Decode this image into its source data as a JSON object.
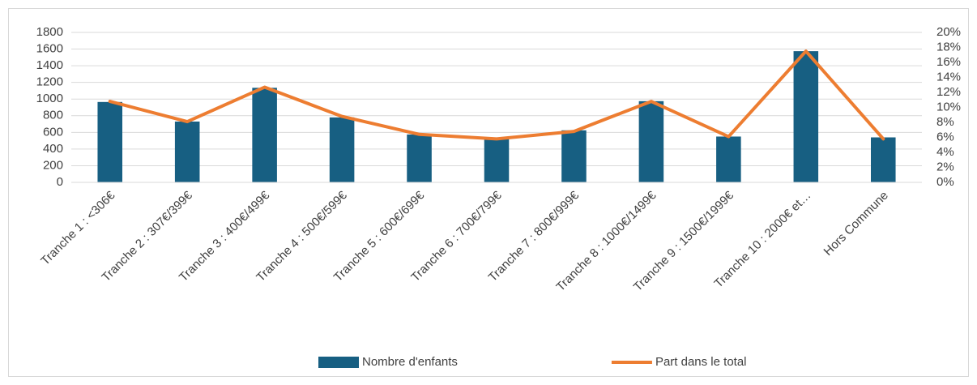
{
  "chart_data": {
    "type": "bar",
    "categories": [
      "Tranche 1 : <306€",
      "Tranche 2 : 307€/399€",
      "Tranche 3 : 400€/499€",
      "Tranche 4 : 500€/599€",
      "Tranche 5 : 600€/699€",
      "Tranche 6 : 700€/799€",
      "Tranche 7 : 800€/999€",
      "Tranche 8 : 1000€/1499€",
      "Tranche 9 : 1500€/1999€",
      "Tranche 10 : 2000€ et…",
      "Hors Commune"
    ],
    "series": [
      {
        "name": "Nombre d'enfants",
        "type": "bar",
        "color": "#175f82",
        "values": [
          965,
          730,
          1135,
          780,
          575,
          530,
          625,
          975,
          550,
          1575,
          540
        ]
      },
      {
        "name": "Part dans le total",
        "type": "line",
        "axis": "y2",
        "color": "#ed7d31",
        "values": [
          10.8,
          8.1,
          12.7,
          8.8,
          6.4,
          5.8,
          6.8,
          10.8,
          6.1,
          17.5,
          5.8
        ]
      }
    ],
    "ylim": [
      0,
      1800
    ],
    "yticks": [
      0,
      200,
      400,
      600,
      800,
      1000,
      1200,
      1400,
      1600,
      1800
    ],
    "y2lim": [
      0,
      20
    ],
    "y2ticks": [
      {
        "value": 0,
        "label": "0%"
      },
      {
        "value": 2,
        "label": "2%"
      },
      {
        "value": 4,
        "label": "4%"
      },
      {
        "value": 6,
        "label": "6%"
      },
      {
        "value": 8,
        "label": "8%"
      },
      {
        "value": 10,
        "label": "10%"
      },
      {
        "value": 12,
        "label": "12%"
      },
      {
        "value": 14,
        "label": "14%"
      },
      {
        "value": 16,
        "label": "16%"
      },
      {
        "value": 18,
        "label": "18%"
      },
      {
        "value": 20,
        "label": "20%"
      }
    ],
    "grid": true,
    "legend": "bottom"
  }
}
